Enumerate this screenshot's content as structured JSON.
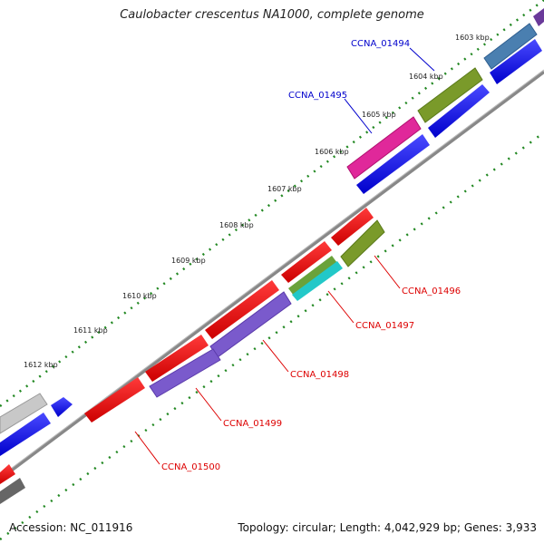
{
  "title": "Caulobacter crescentus NA1000, complete genome",
  "accession": "Accession: NC_011916",
  "summary": "Topology: circular; Length: 4,042,929 bp; Genes: 3,933",
  "ruler": {
    "ticks": [
      "1603 kbp",
      "1604 kbp",
      "1605 kbp",
      "1606 kbp",
      "1607 kbp",
      "1608 kbp",
      "1609 kbp",
      "1610 kbp",
      "1611 kbp",
      "1612 kbp"
    ]
  },
  "gene_labels": {
    "forward": [
      "CCNA_01494",
      "CCNA_01495"
    ],
    "reverse": [
      "CCNA_01496",
      "CCNA_01497",
      "CCNA_01498",
      "CCNA_01499",
      "CCNA_01500"
    ]
  },
  "colors": {
    "forward_label": "#0000cc",
    "reverse_label": "#dd0000",
    "backbone": "#888888",
    "tick_green": "#228822"
  }
}
